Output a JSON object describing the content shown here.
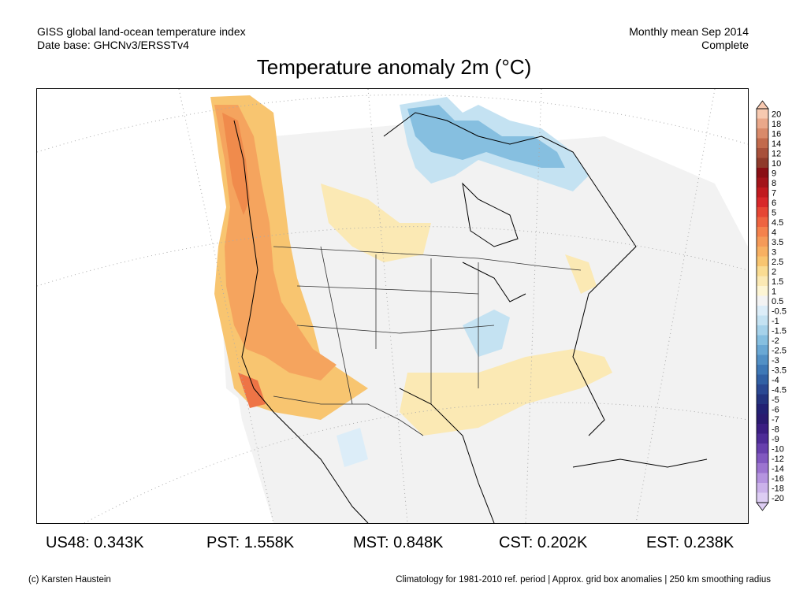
{
  "header": {
    "left_line1": "GISS global land-ocean temperature index",
    "left_line2": "Date base: GHCNv3/ERSSTv4",
    "right_line1": "Monthly mean Sep 2014",
    "right_line2": "Complete"
  },
  "title": "Temperature anomaly 2m (°C)",
  "legend": {
    "labels": [
      "20",
      "18",
      "16",
      "14",
      "12",
      "10",
      "9",
      "8",
      "7",
      "6",
      "5",
      "4.5",
      "4",
      "3.5",
      "3",
      "2.5",
      "2",
      "1.5",
      "1",
      "0.5",
      "-0.5",
      "-1",
      "-1.5",
      "-2",
      "-2.5",
      "-3",
      "-3.5",
      "-4",
      "-4.5",
      "-5",
      "-6",
      "-7",
      "-8",
      "-9",
      "-10",
      "-12",
      "-14",
      "-16",
      "-18",
      "-20"
    ],
    "colors": [
      "#f7c9b0",
      "#eaa88a",
      "#d98a6a",
      "#c26a4c",
      "#a8503a",
      "#8f3a2a",
      "#8a0f14",
      "#a3141a",
      "#c11a1f",
      "#d8282a",
      "#e64634",
      "#ee6440",
      "#f4824c",
      "#f59a58",
      "#f7b062",
      "#f8c570",
      "#fadc92",
      "#fbe9b4",
      "#fdf5d4",
      "#f3f3f3",
      "#dcedf8",
      "#c4e2f2",
      "#a6d2ea",
      "#86bfe0",
      "#6aa8d4",
      "#5290c5",
      "#3e78b6",
      "#3160a4",
      "#2a4892",
      "#23337e",
      "#222173",
      "#2a1a70",
      "#3b1e82",
      "#4e2c97",
      "#6740ad",
      "#8158c0",
      "#9c74d0",
      "#b594df",
      "#cbb2ea",
      "#ddcdf3"
    ]
  },
  "stats": [
    {
      "label": "US48: 0.343K"
    },
    {
      "label": "PST: 1.558K"
    },
    {
      "label": "MST: 0.848K"
    },
    {
      "label": "CST: 0.202K"
    },
    {
      "label": "EST: 0.238K"
    }
  ],
  "footer": {
    "left": "(c) Karsten Haustein",
    "right": "Climatology for 1981-2010 ref. period | Approx. grid box anomalies | 250 km smoothing radius"
  }
}
